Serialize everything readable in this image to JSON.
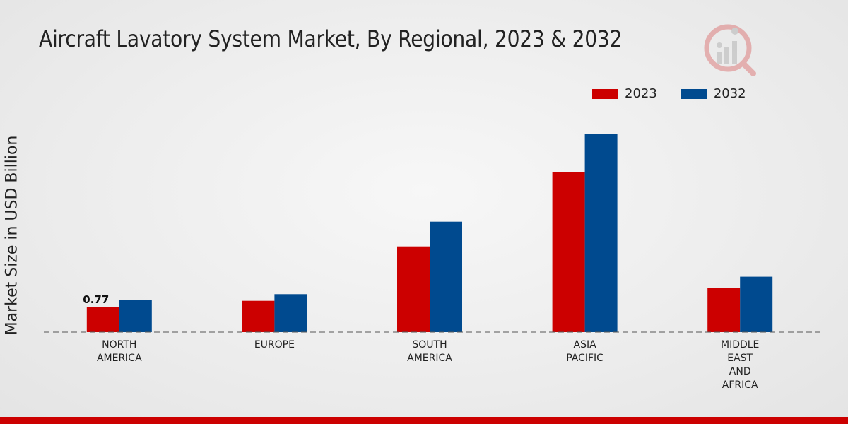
{
  "chart_data": {
    "type": "bar",
    "title": "Aircraft Lavatory System Market, By Regional, 2023 & 2032",
    "xlabel": "",
    "ylabel": "Market Size in USD Billion",
    "categories": [
      [
        "NORTH",
        "AMERICA"
      ],
      [
        "EUROPE"
      ],
      [
        "SOUTH",
        "AMERICA"
      ],
      [
        "ASIA",
        "PACIFIC"
      ],
      [
        "MIDDLE",
        "EAST",
        "AND",
        "AFRICA"
      ]
    ],
    "series": [
      {
        "name": "2023",
        "color": "#cc0000",
        "values": [
          0.77,
          0.95,
          2.6,
          4.85,
          1.35
        ]
      },
      {
        "name": "2032",
        "color": "#004a8f",
        "values": [
          0.97,
          1.15,
          3.35,
          6.0,
          1.68
        ]
      }
    ],
    "data_labels": [
      {
        "series": 0,
        "category": 0,
        "text": "0.77"
      }
    ],
    "ylim": [
      0,
      7.5
    ],
    "grid": false,
    "legend_position": "top-right"
  }
}
